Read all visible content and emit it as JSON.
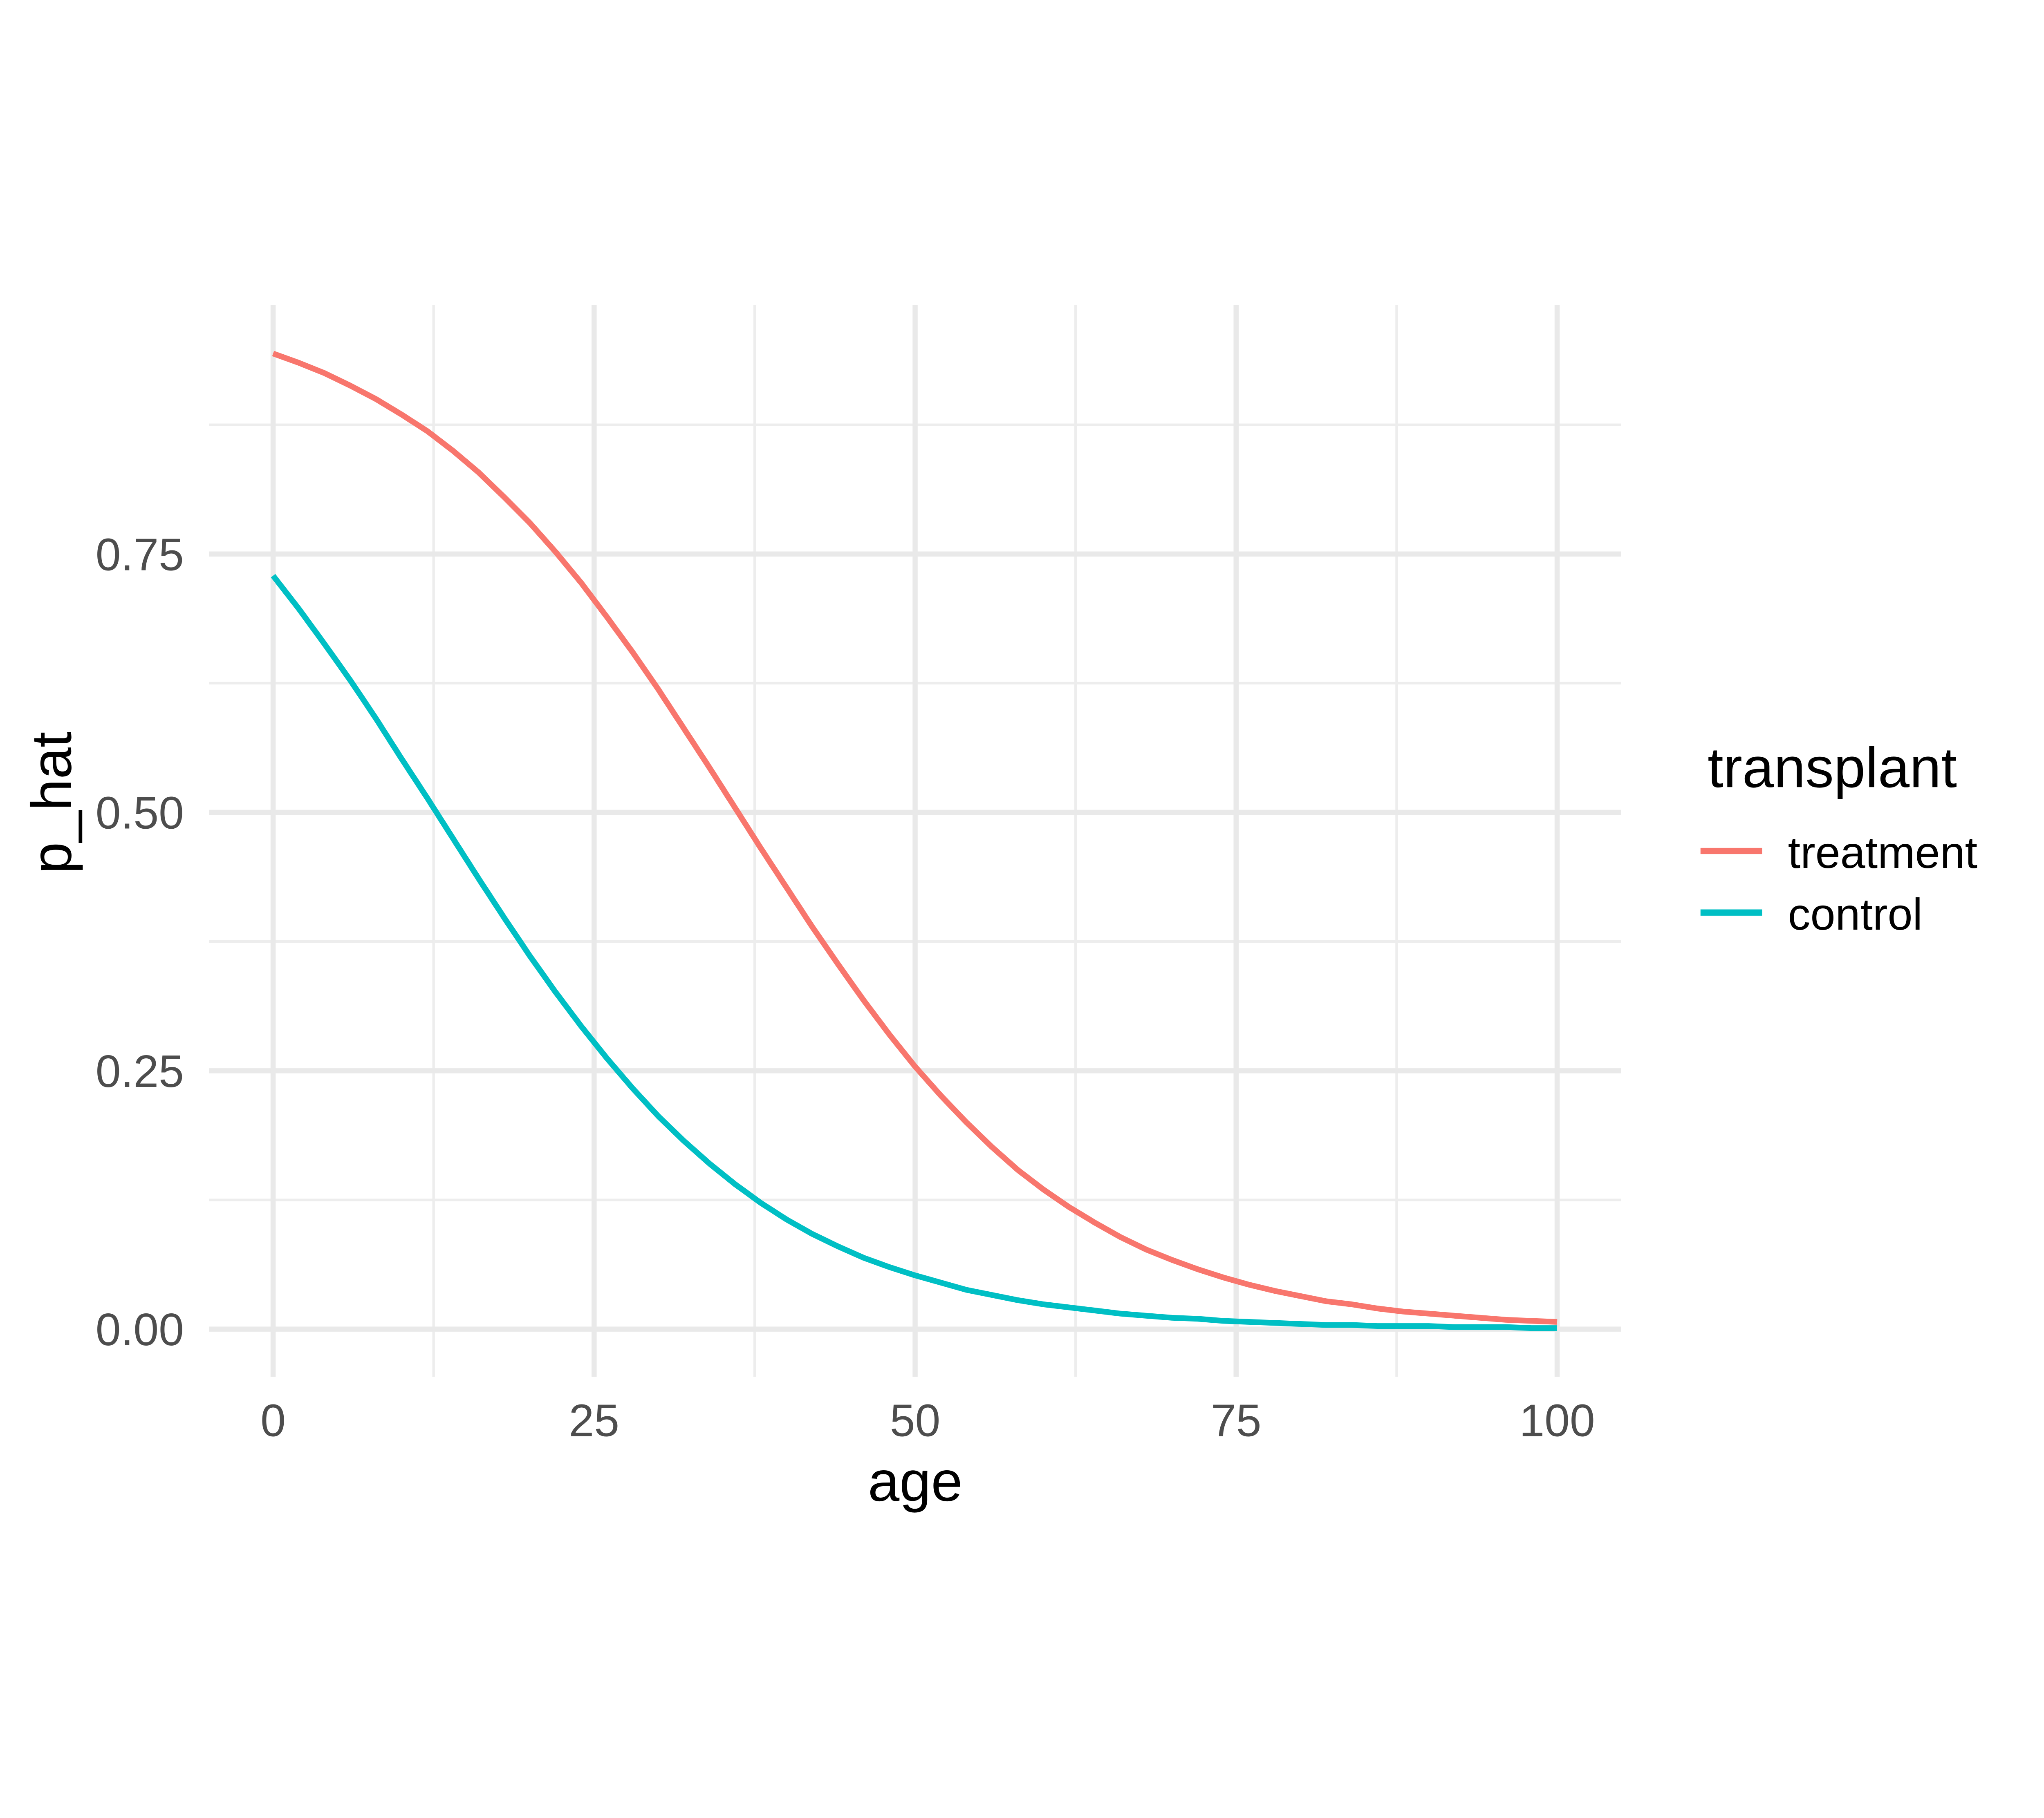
{
  "figure": {
    "background": "#FFFFFF"
  },
  "colors": {
    "treatment": "#F8766D",
    "control": "#00BFC4",
    "grid_major": "#E9E9E9",
    "grid_minor": "#EDEDED",
    "tick_text": "#4D4D4D",
    "title_text": "#000000"
  },
  "chart_data": {
    "type": "line",
    "title": "",
    "xlabel": "age",
    "ylabel": "p_hat",
    "grid": true,
    "legend": {
      "title": "transplant",
      "position": "right"
    },
    "x_axis": {
      "range": [
        0,
        100
      ],
      "ticks": [
        {
          "value": 0,
          "label": "0"
        },
        {
          "value": 25,
          "label": "25"
        },
        {
          "value": 50,
          "label": "50"
        },
        {
          "value": 75,
          "label": "75"
        },
        {
          "value": 100,
          "label": "100"
        }
      ],
      "minor_ticks": [
        12.5,
        37.5,
        62.5,
        87.5
      ]
    },
    "y_axis": {
      "range": [
        0,
        1
      ],
      "ticks": [
        {
          "value": 0.0,
          "label": "0.00"
        },
        {
          "value": 0.25,
          "label": "0.25"
        },
        {
          "value": 0.5,
          "label": "0.50"
        },
        {
          "value": 0.75,
          "label": "0.75"
        }
      ],
      "minor_ticks": [
        0.125,
        0.375,
        0.625,
        0.875
      ]
    },
    "x": [
      0,
      2,
      4,
      6,
      8,
      10,
      12,
      14,
      16,
      18,
      20,
      22,
      24,
      26,
      28,
      30,
      32,
      34,
      36,
      38,
      40,
      42,
      44,
      46,
      48,
      50,
      52,
      54,
      56,
      58,
      60,
      62,
      64,
      66,
      68,
      70,
      72,
      74,
      76,
      78,
      80,
      82,
      84,
      86,
      88,
      90,
      92,
      94,
      96,
      98,
      100
    ],
    "series": [
      {
        "name": "treatment",
        "color": "#F8766D",
        "values": [
          0.944,
          0.935,
          0.925,
          0.913,
          0.9,
          0.885,
          0.869,
          0.85,
          0.829,
          0.805,
          0.78,
          0.752,
          0.722,
          0.689,
          0.655,
          0.619,
          0.581,
          0.543,
          0.504,
          0.465,
          0.427,
          0.389,
          0.353,
          0.318,
          0.285,
          0.254,
          0.226,
          0.2,
          0.176,
          0.154,
          0.135,
          0.118,
          0.103,
          0.089,
          0.077,
          0.067,
          0.058,
          0.05,
          0.043,
          0.037,
          0.032,
          0.027,
          0.024,
          0.02,
          0.017,
          0.015,
          0.013,
          0.011,
          0.009,
          0.008,
          0.007
        ]
      },
      {
        "name": "control",
        "color": "#00BFC4",
        "values": [
          0.729,
          0.697,
          0.663,
          0.628,
          0.591,
          0.552,
          0.514,
          0.475,
          0.436,
          0.398,
          0.361,
          0.326,
          0.293,
          0.262,
          0.233,
          0.206,
          0.182,
          0.16,
          0.14,
          0.122,
          0.106,
          0.092,
          0.08,
          0.069,
          0.06,
          0.052,
          0.045,
          0.038,
          0.033,
          0.028,
          0.024,
          0.021,
          0.018,
          0.015,
          0.013,
          0.011,
          0.01,
          0.008,
          0.007,
          0.006,
          0.005,
          0.004,
          0.004,
          0.003,
          0.003,
          0.003,
          0.002,
          0.002,
          0.002,
          0.001,
          0.001
        ]
      }
    ]
  }
}
